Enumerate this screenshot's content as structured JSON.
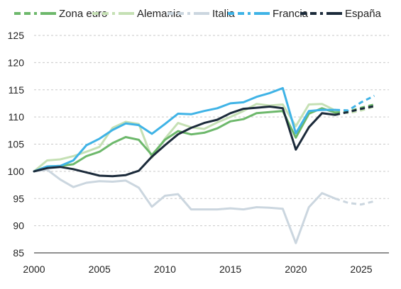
{
  "chart_data": {
    "type": "line",
    "title": "",
    "xlabel": "",
    "ylabel": "",
    "xlim": [
      2000,
      2027
    ],
    "ylim": [
      85,
      127
    ],
    "x_ticks": [
      2000,
      2005,
      2010,
      2015,
      2020,
      2025
    ],
    "y_ticks": [
      85,
      90,
      95,
      100,
      105,
      110,
      115,
      120,
      125
    ],
    "grid": "horizontal dashed",
    "legend_position": "top",
    "projection_start": 2023.5,
    "series": [
      {
        "name": "Zona euro",
        "color": "#6db86b",
        "x": [
          2000,
          2001,
          2002,
          2003,
          2004,
          2005,
          2006,
          2007,
          2008,
          2009,
          2010,
          2011,
          2012,
          2013,
          2014,
          2015,
          2016,
          2017,
          2018,
          2019,
          2020,
          2021,
          2022,
          2023,
          2024,
          2025,
          2026
        ],
        "values": [
          100,
          100.9,
          101.0,
          101.3,
          102.8,
          103.6,
          105.2,
          106.3,
          105.8,
          103.0,
          105.8,
          107.4,
          106.8,
          107.1,
          107.9,
          109.2,
          109.6,
          110.7,
          110.9,
          111.1,
          106.2,
          110.6,
          111.6,
          110.8,
          111.0,
          111.7,
          112.3
        ]
      },
      {
        "name": "Alemania",
        "color": "#c5e0b4",
        "x": [
          2000,
          2001,
          2002,
          2003,
          2004,
          2005,
          2006,
          2007,
          2008,
          2009,
          2010,
          2011,
          2012,
          2013,
          2014,
          2015,
          2016,
          2017,
          2018,
          2019,
          2020,
          2021,
          2022,
          2023,
          2024,
          2025,
          2026
        ],
        "values": [
          100,
          102.0,
          102.2,
          102.8,
          103.6,
          104.5,
          108.0,
          109.1,
          108.7,
          102.5,
          106.0,
          108.9,
          108.1,
          107.8,
          109.0,
          110.0,
          111.1,
          112.4,
          112.1,
          112.3,
          108.3,
          112.3,
          112.4,
          111.2,
          110.7,
          111.2,
          111.9
        ]
      },
      {
        "name": "Italia",
        "color": "#cbd6df",
        "x": [
          2000,
          2001,
          2002,
          2003,
          2004,
          2005,
          2006,
          2007,
          2008,
          2009,
          2010,
          2011,
          2012,
          2013,
          2014,
          2015,
          2016,
          2017,
          2018,
          2019,
          2020,
          2021,
          2022,
          2023,
          2024,
          2025,
          2026
        ],
        "values": [
          100,
          100.3,
          98.5,
          97.1,
          97.9,
          98.2,
          98.1,
          98.3,
          97.0,
          93.5,
          95.5,
          95.8,
          93.0,
          93.0,
          93.0,
          93.2,
          93.0,
          93.4,
          93.3,
          93.1,
          86.8,
          93.4,
          96.0,
          95.0,
          94.2,
          93.9,
          94.5
        ]
      },
      {
        "name": "Francia",
        "color": "#3fb3e6",
        "x": [
          2000,
          2001,
          2002,
          2003,
          2004,
          2005,
          2006,
          2007,
          2008,
          2009,
          2010,
          2011,
          2012,
          2013,
          2014,
          2015,
          2016,
          2017,
          2018,
          2019,
          2020,
          2021,
          2022,
          2023,
          2024,
          2025,
          2026
        ],
        "values": [
          100,
          100.9,
          101.0,
          102.0,
          104.8,
          106.0,
          107.6,
          108.8,
          108.5,
          106.9,
          108.7,
          110.6,
          110.5,
          111.1,
          111.6,
          112.5,
          112.7,
          113.7,
          114.4,
          115.3,
          107.0,
          111.1,
          111.3,
          111.3,
          111.2,
          112.7,
          113.9
        ]
      },
      {
        "name": "España",
        "color": "#1b2a3a",
        "x": [
          2000,
          2001,
          2002,
          2003,
          2004,
          2005,
          2006,
          2007,
          2008,
          2009,
          2010,
          2011,
          2012,
          2013,
          2014,
          2015,
          2016,
          2017,
          2018,
          2019,
          2020,
          2021,
          2022,
          2023,
          2024,
          2025,
          2026
        ],
        "values": [
          100,
          100.6,
          100.8,
          100.4,
          99.8,
          99.2,
          99.1,
          99.3,
          100.1,
          102.7,
          104.8,
          106.8,
          108.0,
          108.9,
          109.5,
          110.7,
          111.5,
          111.7,
          111.9,
          111.6,
          104.0,
          108.1,
          110.7,
          110.4,
          110.9,
          111.5,
          112.0
        ]
      }
    ]
  }
}
